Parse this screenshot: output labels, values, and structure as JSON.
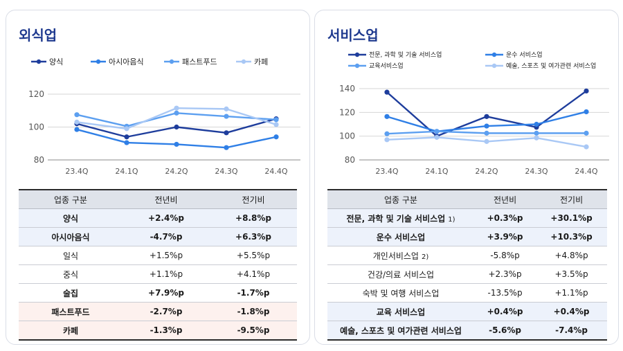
{
  "left": {
    "title": "외식업",
    "table": {
      "headers": [
        "업종 구분",
        "전년비",
        "전기비"
      ],
      "rows": [
        {
          "name": "양식",
          "yoy": "+2.4%p",
          "qoq": "+8.8%p",
          "bold": true,
          "bg": "blue"
        },
        {
          "name": "아시아음식",
          "yoy": "-4.7%p",
          "qoq": "+6.3%p",
          "bold": true,
          "bg": "blue"
        },
        {
          "name": "일식",
          "yoy": "+1.5%p",
          "qoq": "+5.5%p",
          "bold": false,
          "bg": ""
        },
        {
          "name": "중식",
          "yoy": "+1.1%p",
          "qoq": "+4.1%p",
          "bold": false,
          "bg": ""
        },
        {
          "name": "술집",
          "yoy": "+7.9%p",
          "qoq": "-1.7%p",
          "bold": true,
          "bg": ""
        },
        {
          "name": "패스트푸드",
          "yoy": "-2.7%p",
          "qoq": "-1.8%p",
          "bold": true,
          "bg": "pink"
        },
        {
          "name": "카페",
          "yoy": "-1.3%p",
          "qoq": "-9.5%p",
          "bold": true,
          "bg": "pink"
        }
      ]
    }
  },
  "right": {
    "title": "서비스업",
    "table": {
      "headers": [
        "업종 구분",
        "전년비",
        "전기비"
      ],
      "rows": [
        {
          "name": "전문, 과학 및 기술 서비스업",
          "note": "1)",
          "yoy": "+0.3%p",
          "qoq": "+30.1%p",
          "bold": true,
          "bg": "blue"
        },
        {
          "name": "운수 서비스업",
          "note": "",
          "yoy": "+3.9%p",
          "qoq": "+10.3%p",
          "bold": true,
          "bg": "blue"
        },
        {
          "name": "개인서비스업",
          "note": "2)",
          "yoy": "-5.8%p",
          "qoq": "+4.8%p",
          "bold": false,
          "bg": ""
        },
        {
          "name": "건강/의료 서비스업",
          "note": "",
          "yoy": "+2.3%p",
          "qoq": "+3.5%p",
          "bold": false,
          "bg": ""
        },
        {
          "name": "숙박 및 여행 서비스업",
          "note": "",
          "yoy": "-13.5%p",
          "qoq": "+1.1%p",
          "bold": false,
          "bg": ""
        },
        {
          "name": "교육 서비스업",
          "note": "",
          "yoy": "+0.4%p",
          "qoq": "+0.4%p",
          "bold": true,
          "bg": "blue"
        },
        {
          "name": "예술, 스포츠 및 여가관련 서비스업",
          "note": "",
          "yoy": "-5.6%p",
          "qoq": "-7.4%p",
          "bold": true,
          "bg": "blue"
        }
      ]
    }
  },
  "chart_data": [
    {
      "type": "line",
      "title": "외식업",
      "x": [
        "23.4Q",
        "24.1Q",
        "24.2Q",
        "24.3Q",
        "24.4Q"
      ],
      "ylim": [
        80,
        120
      ],
      "yticks": [
        80,
        100,
        120
      ],
      "grid": true,
      "legend": "top",
      "series": [
        {
          "name": "양식",
          "color": "#1e3d9c",
          "values": [
            102,
            94,
            100,
            96.5,
            105
          ]
        },
        {
          "name": "아시아음식",
          "color": "#2f7fe6",
          "values": [
            98.5,
            90.5,
            89.5,
            87.5,
            94
          ]
        },
        {
          "name": "패스트푸드",
          "color": "#5c9ff0",
          "values": [
            107.5,
            100.5,
            108.5,
            106.5,
            104.5
          ]
        },
        {
          "name": "카페",
          "color": "#a9c8f5",
          "values": [
            103,
            99,
            111.5,
            111,
            101.5
          ]
        }
      ]
    },
    {
      "type": "line",
      "title": "서비스업",
      "x": [
        "23.4Q",
        "24.1Q",
        "24.2Q",
        "24.3Q",
        "24.4Q"
      ],
      "ylim": [
        80,
        140
      ],
      "yticks": [
        80,
        100,
        120,
        140
      ],
      "grid": true,
      "legend": "top",
      "series": [
        {
          "name": "전문, 과학 및 기술 서비스업",
          "color": "#1e3d9c",
          "values": [
            137,
            100,
            116.5,
            107.5,
            138
          ]
        },
        {
          "name": "운수 서비스업",
          "color": "#2f7fe6",
          "values": [
            116.5,
            104,
            108.5,
            110,
            120.5
          ]
        },
        {
          "name": "교육서비스업",
          "color": "#5c9ff0",
          "values": [
            102,
            104,
            102.5,
            102.5,
            102.5
          ]
        },
        {
          "name": "예술, 스포츠 및 여가관련 서비스업",
          "color": "#a9c8f5",
          "values": [
            97,
            99,
            95.5,
            98.5,
            91
          ]
        }
      ]
    }
  ]
}
